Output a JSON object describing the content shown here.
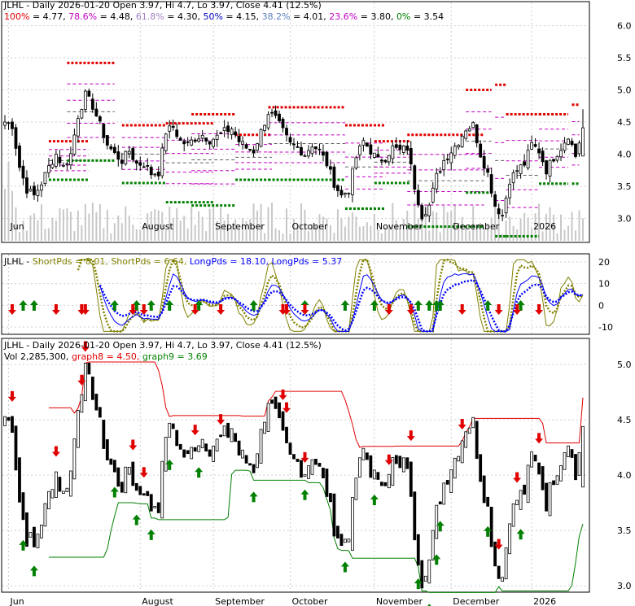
{
  "colors": {
    "bg": "#ffffff",
    "frame": "#000000",
    "grid": "#cfcfcf",
    "candle": "#000000",
    "volume": "#c8c8c8",
    "fib_res": "#e00000",
    "fib_mag": "#c000c0",
    "fib_sup": "#008000",
    "sp1": "#808000",
    "sp2": "#808000",
    "lp1": "#0000ff",
    "lp2": "#0000ff",
    "up_arrow": "#008000",
    "down_arrow": "#e00000",
    "t_100": "#e00000",
    "t_786": "#c000c0",
    "t_618": "#a080c0",
    "t_50": "#0000c0",
    "t_382": "#6080c0",
    "t_236": "#c000c0",
    "t_0": "#008000",
    "upper": "#e00000",
    "lower": "#008000"
  },
  "chart_data": [
    {
      "type": "candlestick",
      "title": "JLHL - Daily 2026-01-20 Open 3.97, Hi 4.7, Lo 3.97, Close 4.41 (12.5%)",
      "fib_legend": [
        {
          "key": "100%",
          "value": "4.77",
          "color": "t_100"
        },
        {
          "key": "78.6%",
          "value": "4.48",
          "color": "t_786"
        },
        {
          "key": "61.8%",
          "value": "4.30",
          "color": "t_618"
        },
        {
          "key": "50%",
          "value": "4.15",
          "color": "t_50"
        },
        {
          "key": "38.2%",
          "value": "4.01",
          "color": "t_382"
        },
        {
          "key": "23.6%",
          "value": "3.80",
          "color": "t_236"
        },
        {
          "key": "0%",
          "value": "3.54",
          "color": "t_0"
        }
      ],
      "ylim": [
        2.65,
        6.35
      ],
      "yticks": [
        3.0,
        3.5,
        4.0,
        4.5,
        5.0,
        5.5,
        6.0
      ],
      "ytick_labels": [
        "3.0",
        "3.5",
        "4.0",
        "4.5",
        "5.0",
        "5.5",
        "6.0"
      ],
      "x_labels": [
        {
          "label": "Jun",
          "i": 1
        },
        {
          "label": "August",
          "i": 37
        },
        {
          "label": "September",
          "i": 57
        },
        {
          "label": "October",
          "i": 78
        },
        {
          "label": "November",
          "i": 101
        },
        {
          "label": "December",
          "i": 122
        },
        {
          "label": "2026",
          "i": 144
        }
      ],
      "fib_segments": [
        {
          "start": 12,
          "end": 23,
          "r": 4.2,
          "s": 3.6
        },
        {
          "start": 17,
          "end": 30,
          "r": 5.42,
          "s": 3.9
        },
        {
          "start": 32,
          "end": 44,
          "r": 4.45,
          "s": 3.55
        },
        {
          "start": 44,
          "end": 57,
          "r": 4.48,
          "s": 3.25
        },
        {
          "start": 51,
          "end": 63,
          "r": 4.62,
          "s": 3.2
        },
        {
          "start": 63,
          "end": 73,
          "r": 4.3,
          "s": 3.6
        },
        {
          "start": 72,
          "end": 93,
          "r": 4.73,
          "s": 3.6
        },
        {
          "start": 93,
          "end": 104,
          "r": 4.45,
          "s": 3.15
        },
        {
          "start": 101,
          "end": 111,
          "r": 4.2,
          "s": 3.55
        },
        {
          "start": 110,
          "end": 131,
          "r": 4.3,
          "s": 2.87
        },
        {
          "start": 126,
          "end": 133,
          "r": 5.0,
          "s": 3.4
        },
        {
          "start": 134,
          "end": 137,
          "r": 5.08,
          "s": 2.72
        },
        {
          "start": 137,
          "end": 146,
          "r": 4.62,
          "s": 2.72
        },
        {
          "start": 146,
          "end": 154,
          "r": 4.62,
          "s": 3.54
        },
        {
          "start": 155,
          "end": 157,
          "r": 4.77,
          "s": 3.54
        }
      ]
    },
    {
      "type": "line",
      "title_segments": [
        {
          "text": "JLHL - ",
          "color": "frame"
        },
        {
          "text": "ShortPds = 8.01, ",
          "color": "sp1"
        },
        {
          "text": "ShortPds = 6.64, ",
          "color": "sp2"
        },
        {
          "text": "LongPds = 18.10, ",
          "color": "lp1"
        },
        {
          "text": "LongPds = 5.37",
          "color": "lp2"
        }
      ],
      "ylim": [
        -13,
        23
      ],
      "yticks": [
        -10,
        0,
        10,
        20
      ],
      "ytick_labels": [
        "-10",
        "0",
        "10",
        "20"
      ]
    },
    {
      "type": "candlestick",
      "title": "JLHL - Daily 2026-01-20 Open 3.97, Hi 4.7, Lo 3.97, Close 4.41 (12.5%)",
      "legend": [
        {
          "text": "Vol 2,285,300",
          "color": "frame"
        },
        {
          "text": "graph8 = 4.50",
          "color": "upper"
        },
        {
          "text": "graph9 = 3.69",
          "color": "lower"
        }
      ],
      "ylim": [
        2.95,
        5.22
      ],
      "yticks": [
        3.0,
        3.5,
        4.0,
        4.5,
        5.0
      ],
      "ytick_labels": [
        "3.0",
        "3.5",
        "4.0",
        "4.5",
        "5.0"
      ]
    }
  ],
  "data_points": {
    "n": 159,
    "anchors": [
      [
        0,
        4.5
      ],
      [
        2,
        4.45
      ],
      [
        4,
        3.8
      ],
      [
        6,
        3.45
      ],
      [
        8,
        3.35
      ],
      [
        10,
        3.55
      ],
      [
        12,
        3.8
      ],
      [
        14,
        4.0
      ],
      [
        16,
        3.8
      ],
      [
        18,
        4.0
      ],
      [
        20,
        4.6
      ],
      [
        22,
        4.92
      ],
      [
        24,
        4.75
      ],
      [
        26,
        4.45
      ],
      [
        28,
        4.15
      ],
      [
        30,
        4.0
      ],
      [
        32,
        3.9
      ],
      [
        34,
        4.05
      ],
      [
        36,
        3.85
      ],
      [
        38,
        3.85
      ],
      [
        40,
        3.7
      ],
      [
        42,
        3.72
      ],
      [
        44,
        4.35
      ],
      [
        46,
        4.42
      ],
      [
        48,
        4.2
      ],
      [
        50,
        4.15
      ],
      [
        52,
        4.25
      ],
      [
        54,
        4.3
      ],
      [
        56,
        4.22
      ],
      [
        58,
        4.27
      ],
      [
        60,
        4.35
      ],
      [
        62,
        4.4
      ],
      [
        64,
        4.2
      ],
      [
        66,
        4.1
      ],
      [
        68,
        4.05
      ],
      [
        70,
        4.35
      ],
      [
        72,
        4.65
      ],
      [
        74,
        4.55
      ],
      [
        76,
        4.35
      ],
      [
        78,
        4.15
      ],
      [
        80,
        4.1
      ],
      [
        82,
        4.0
      ],
      [
        84,
        4.15
      ],
      [
        86,
        4.05
      ],
      [
        88,
        3.85
      ],
      [
        90,
        3.55
      ],
      [
        92,
        3.35
      ],
      [
        94,
        3.45
      ],
      [
        96,
        3.95
      ],
      [
        98,
        4.2
      ],
      [
        100,
        4.05
      ],
      [
        102,
        3.9
      ],
      [
        104,
        3.95
      ],
      [
        106,
        4.1
      ],
      [
        108,
        4.05
      ],
      [
        110,
        4.1
      ],
      [
        112,
        3.5
      ],
      [
        114,
        3.05
      ],
      [
        116,
        3.2
      ],
      [
        118,
        3.65
      ],
      [
        120,
        3.9
      ],
      [
        122,
        4.05
      ],
      [
        124,
        4.2
      ],
      [
        126,
        4.4
      ],
      [
        128,
        4.45
      ],
      [
        130,
        4.0
      ],
      [
        132,
        3.7
      ],
      [
        134,
        3.2
      ],
      [
        136,
        3.05
      ],
      [
        138,
        3.6
      ],
      [
        140,
        3.75
      ],
      [
        142,
        3.85
      ],
      [
        144,
        4.15
      ],
      [
        146,
        4.05
      ],
      [
        148,
        3.75
      ],
      [
        150,
        3.95
      ],
      [
        152,
        4.1
      ],
      [
        154,
        4.3
      ],
      [
        156,
        3.97
      ],
      [
        158,
        4.41
      ]
    ],
    "last_bar": {
      "open": 3.97,
      "high": 4.7,
      "low": 3.97,
      "close": 4.41
    },
    "volume_max_label": "2,285,300",
    "signals_up": [
      5,
      8,
      30,
      36,
      40,
      45,
      53,
      68,
      82,
      93,
      101,
      113,
      116,
      118,
      119,
      132,
      141
    ],
    "signals_down": [
      2,
      14,
      21,
      22,
      35,
      38,
      52,
      59,
      76,
      77,
      82,
      105,
      111,
      125,
      135,
      140,
      146
    ]
  }
}
